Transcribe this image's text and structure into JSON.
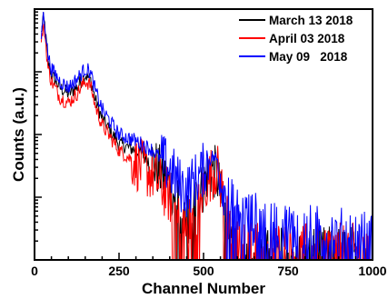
{
  "chart_data": {
    "type": "line",
    "xlabel": "Channel Number",
    "ylabel": "Counts (a.u.)",
    "xlim": [
      0,
      1000
    ],
    "y_scale": "log",
    "y_decades": 4,
    "y_tick_labels": "none",
    "x_ticks": [
      0,
      250,
      500,
      750,
      1000
    ],
    "x_tick_labels": [
      "0",
      "250",
      "500",
      "750",
      "1000"
    ],
    "legend_position": "top-right",
    "grid": false,
    "series": [
      {
        "name": "March 13 2018",
        "color": "#000000",
        "x": [
          20,
          25,
          30,
          40,
          50,
          75,
          100,
          125,
          150,
          165,
          180,
          200,
          250,
          300,
          350,
          400,
          430,
          450,
          470,
          490,
          510,
          525,
          540,
          555,
          570,
          585,
          600,
          700,
          800,
          900,
          1000
        ],
        "decade": [
          3.6,
          3.85,
          3.75,
          3.15,
          2.95,
          2.75,
          2.65,
          2.75,
          2.95,
          2.88,
          2.55,
          2.25,
          1.85,
          1.75,
          1.55,
          1.2,
          0.8,
          0.6,
          0.9,
          1.05,
          1.35,
          1.45,
          1.35,
          0.9,
          0.4,
          0.15,
          0.1,
          0.1,
          0.1,
          0.1,
          0.1
        ]
      },
      {
        "name": "April 03 2018",
        "color": "#ff0000",
        "x": [
          20,
          25,
          30,
          40,
          50,
          75,
          100,
          125,
          150,
          165,
          180,
          200,
          250,
          300,
          350,
          400,
          430,
          450,
          470,
          490,
          510,
          525,
          540,
          555,
          570,
          585,
          600,
          700,
          800,
          900,
          1000
        ],
        "decade": [
          3.45,
          3.7,
          3.65,
          3.05,
          2.85,
          2.6,
          2.5,
          2.65,
          2.85,
          2.8,
          2.45,
          2.15,
          1.75,
          1.55,
          1.35,
          1.0,
          0.55,
          0.45,
          0.75,
          0.95,
          1.25,
          1.4,
          1.45,
          1.1,
          0.6,
          0.3,
          0.2,
          0.18,
          0.15,
          0.15,
          0.15
        ]
      },
      {
        "name": "May 09   2018",
        "color": "#0000ff",
        "x": [
          20,
          25,
          30,
          40,
          50,
          75,
          100,
          125,
          150,
          165,
          180,
          200,
          250,
          300,
          350,
          400,
          430,
          450,
          470,
          490,
          510,
          525,
          540,
          555,
          570,
          585,
          600,
          650,
          700,
          800,
          900,
          1000
        ],
        "decade": [
          3.55,
          3.9,
          3.8,
          3.25,
          3.05,
          2.85,
          2.75,
          2.88,
          3.05,
          3.0,
          2.7,
          2.4,
          2.0,
          1.9,
          1.75,
          1.45,
          1.2,
          1.1,
          1.25,
          1.35,
          1.55,
          1.65,
          1.6,
          1.25,
          0.95,
          0.85,
          0.75,
          0.65,
          0.55,
          0.45,
          0.4,
          0.35
        ]
      }
    ]
  }
}
